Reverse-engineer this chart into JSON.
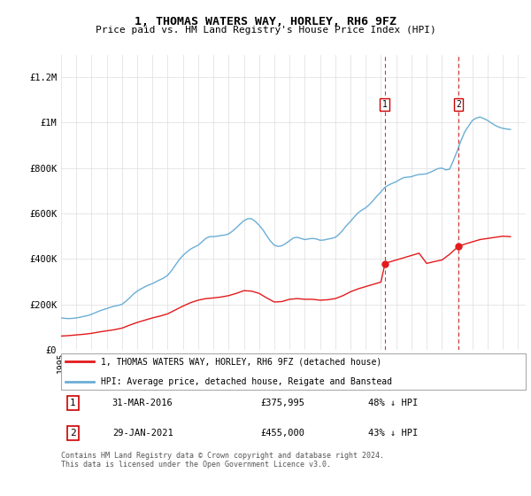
{
  "title": "1, THOMAS WATERS WAY, HORLEY, RH6 9FZ",
  "subtitle": "Price paid vs. HM Land Registry's House Price Index (HPI)",
  "ylabel_ticks": [
    "£0",
    "£200K",
    "£400K",
    "£600K",
    "£800K",
    "£1M",
    "£1.2M"
  ],
  "ytick_values": [
    0,
    200000,
    400000,
    600000,
    800000,
    1000000,
    1200000
  ],
  "ylim": [
    0,
    1300000
  ],
  "xlim_start": 1995.0,
  "xlim_end": 2025.5,
  "hpi_line_color": "#6baed6",
  "property_line_color": "#e31a1c",
  "transaction1_date": 2016.25,
  "transaction1_price": 375995,
  "transaction2_date": 2021.08,
  "transaction2_price": 455000,
  "legend_label_property": "1, THOMAS WATERS WAY, HORLEY, RH6 9FZ (detached house)",
  "legend_label_hpi": "HPI: Average price, detached house, Reigate and Banstead",
  "footer": "Contains HM Land Registry data © Crown copyright and database right 2024.\nThis data is licensed under the Open Government Licence v3.0.",
  "hpi_data": {
    "years": [
      1995.0,
      1995.25,
      1995.5,
      1995.75,
      1996.0,
      1996.25,
      1996.5,
      1996.75,
      1997.0,
      1997.25,
      1997.5,
      1997.75,
      1998.0,
      1998.25,
      1998.5,
      1998.75,
      1999.0,
      1999.25,
      1999.5,
      1999.75,
      2000.0,
      2000.25,
      2000.5,
      2000.75,
      2001.0,
      2001.25,
      2001.5,
      2001.75,
      2002.0,
      2002.25,
      2002.5,
      2002.75,
      2003.0,
      2003.25,
      2003.5,
      2003.75,
      2004.0,
      2004.25,
      2004.5,
      2004.75,
      2005.0,
      2005.25,
      2005.5,
      2005.75,
      2006.0,
      2006.25,
      2006.5,
      2006.75,
      2007.0,
      2007.25,
      2007.5,
      2007.75,
      2008.0,
      2008.25,
      2008.5,
      2008.75,
      2009.0,
      2009.25,
      2009.5,
      2009.75,
      2010.0,
      2010.25,
      2010.5,
      2010.75,
      2011.0,
      2011.25,
      2011.5,
      2011.75,
      2012.0,
      2012.25,
      2012.5,
      2012.75,
      2013.0,
      2013.25,
      2013.5,
      2013.75,
      2014.0,
      2014.25,
      2014.5,
      2014.75,
      2015.0,
      2015.25,
      2015.5,
      2015.75,
      2016.0,
      2016.25,
      2016.5,
      2016.75,
      2017.0,
      2017.25,
      2017.5,
      2017.75,
      2018.0,
      2018.25,
      2018.5,
      2018.75,
      2019.0,
      2019.25,
      2019.5,
      2019.75,
      2020.0,
      2020.25,
      2020.5,
      2020.75,
      2021.0,
      2021.25,
      2021.5,
      2021.75,
      2022.0,
      2022.25,
      2022.5,
      2022.75,
      2023.0,
      2023.25,
      2023.5,
      2023.75,
      2024.0,
      2024.25,
      2024.5
    ],
    "values": [
      140000,
      138000,
      137000,
      138000,
      140000,
      143000,
      147000,
      150000,
      156000,
      163000,
      170000,
      176000,
      181000,
      187000,
      192000,
      195000,
      200000,
      213000,
      228000,
      245000,
      258000,
      268000,
      277000,
      285000,
      291000,
      300000,
      308000,
      316000,
      328000,
      348000,
      372000,
      396000,
      415000,
      430000,
      443000,
      452000,
      460000,
      475000,
      490000,
      498000,
      498000,
      500000,
      503000,
      505000,
      510000,
      522000,
      537000,
      553000,
      568000,
      577000,
      577000,
      565000,
      548000,
      528000,
      502000,
      478000,
      460000,
      455000,
      458000,
      468000,
      480000,
      492000,
      495000,
      490000,
      485000,
      488000,
      490000,
      488000,
      482000,
      483000,
      487000,
      490000,
      495000,
      508000,
      527000,
      548000,
      565000,
      585000,
      603000,
      615000,
      625000,
      640000,
      658000,
      678000,
      695000,
      715000,
      725000,
      733000,
      740000,
      750000,
      758000,
      760000,
      762000,
      768000,
      772000,
      773000,
      775000,
      782000,
      790000,
      798000,
      800000,
      792000,
      795000,
      832000,
      875000,
      920000,
      960000,
      985000,
      1010000,
      1020000,
      1025000,
      1018000,
      1010000,
      998000,
      988000,
      980000,
      975000,
      972000,
      970000
    ]
  },
  "property_data": {
    "years": [
      1995.0,
      1995.5,
      1996.0,
      1996.5,
      1997.0,
      1997.5,
      1998.0,
      1998.5,
      1999.0,
      1999.5,
      2000.0,
      2000.5,
      2001.0,
      2001.5,
      2002.0,
      2002.5,
      2003.0,
      2003.5,
      2004.0,
      2004.5,
      2005.0,
      2005.5,
      2006.0,
      2006.5,
      2007.0,
      2007.5,
      2008.0,
      2008.5,
      2009.0,
      2009.5,
      2010.0,
      2010.5,
      2011.0,
      2011.5,
      2012.0,
      2012.5,
      2013.0,
      2013.5,
      2014.0,
      2014.5,
      2015.0,
      2015.5,
      2016.0,
      2016.25,
      2016.5,
      2017.0,
      2017.5,
      2018.0,
      2018.5,
      2019.0,
      2019.5,
      2020.0,
      2020.5,
      2021.08,
      2021.5,
      2022.0,
      2022.5,
      2023.0,
      2023.5,
      2024.0,
      2024.5
    ],
    "values": [
      60000,
      62000,
      65000,
      68000,
      72000,
      78000,
      83000,
      88000,
      95000,
      108000,
      120000,
      130000,
      140000,
      148000,
      158000,
      175000,
      192000,
      207000,
      218000,
      225000,
      228000,
      232000,
      238000,
      248000,
      260000,
      258000,
      248000,
      228000,
      210000,
      212000,
      222000,
      225000,
      222000,
      222000,
      218000,
      220000,
      225000,
      238000,
      255000,
      268000,
      278000,
      288000,
      298000,
      375995,
      385000,
      395000,
      405000,
      415000,
      425000,
      380000,
      388000,
      395000,
      420000,
      455000,
      465000,
      475000,
      485000,
      490000,
      495000,
      500000,
      498000
    ]
  }
}
